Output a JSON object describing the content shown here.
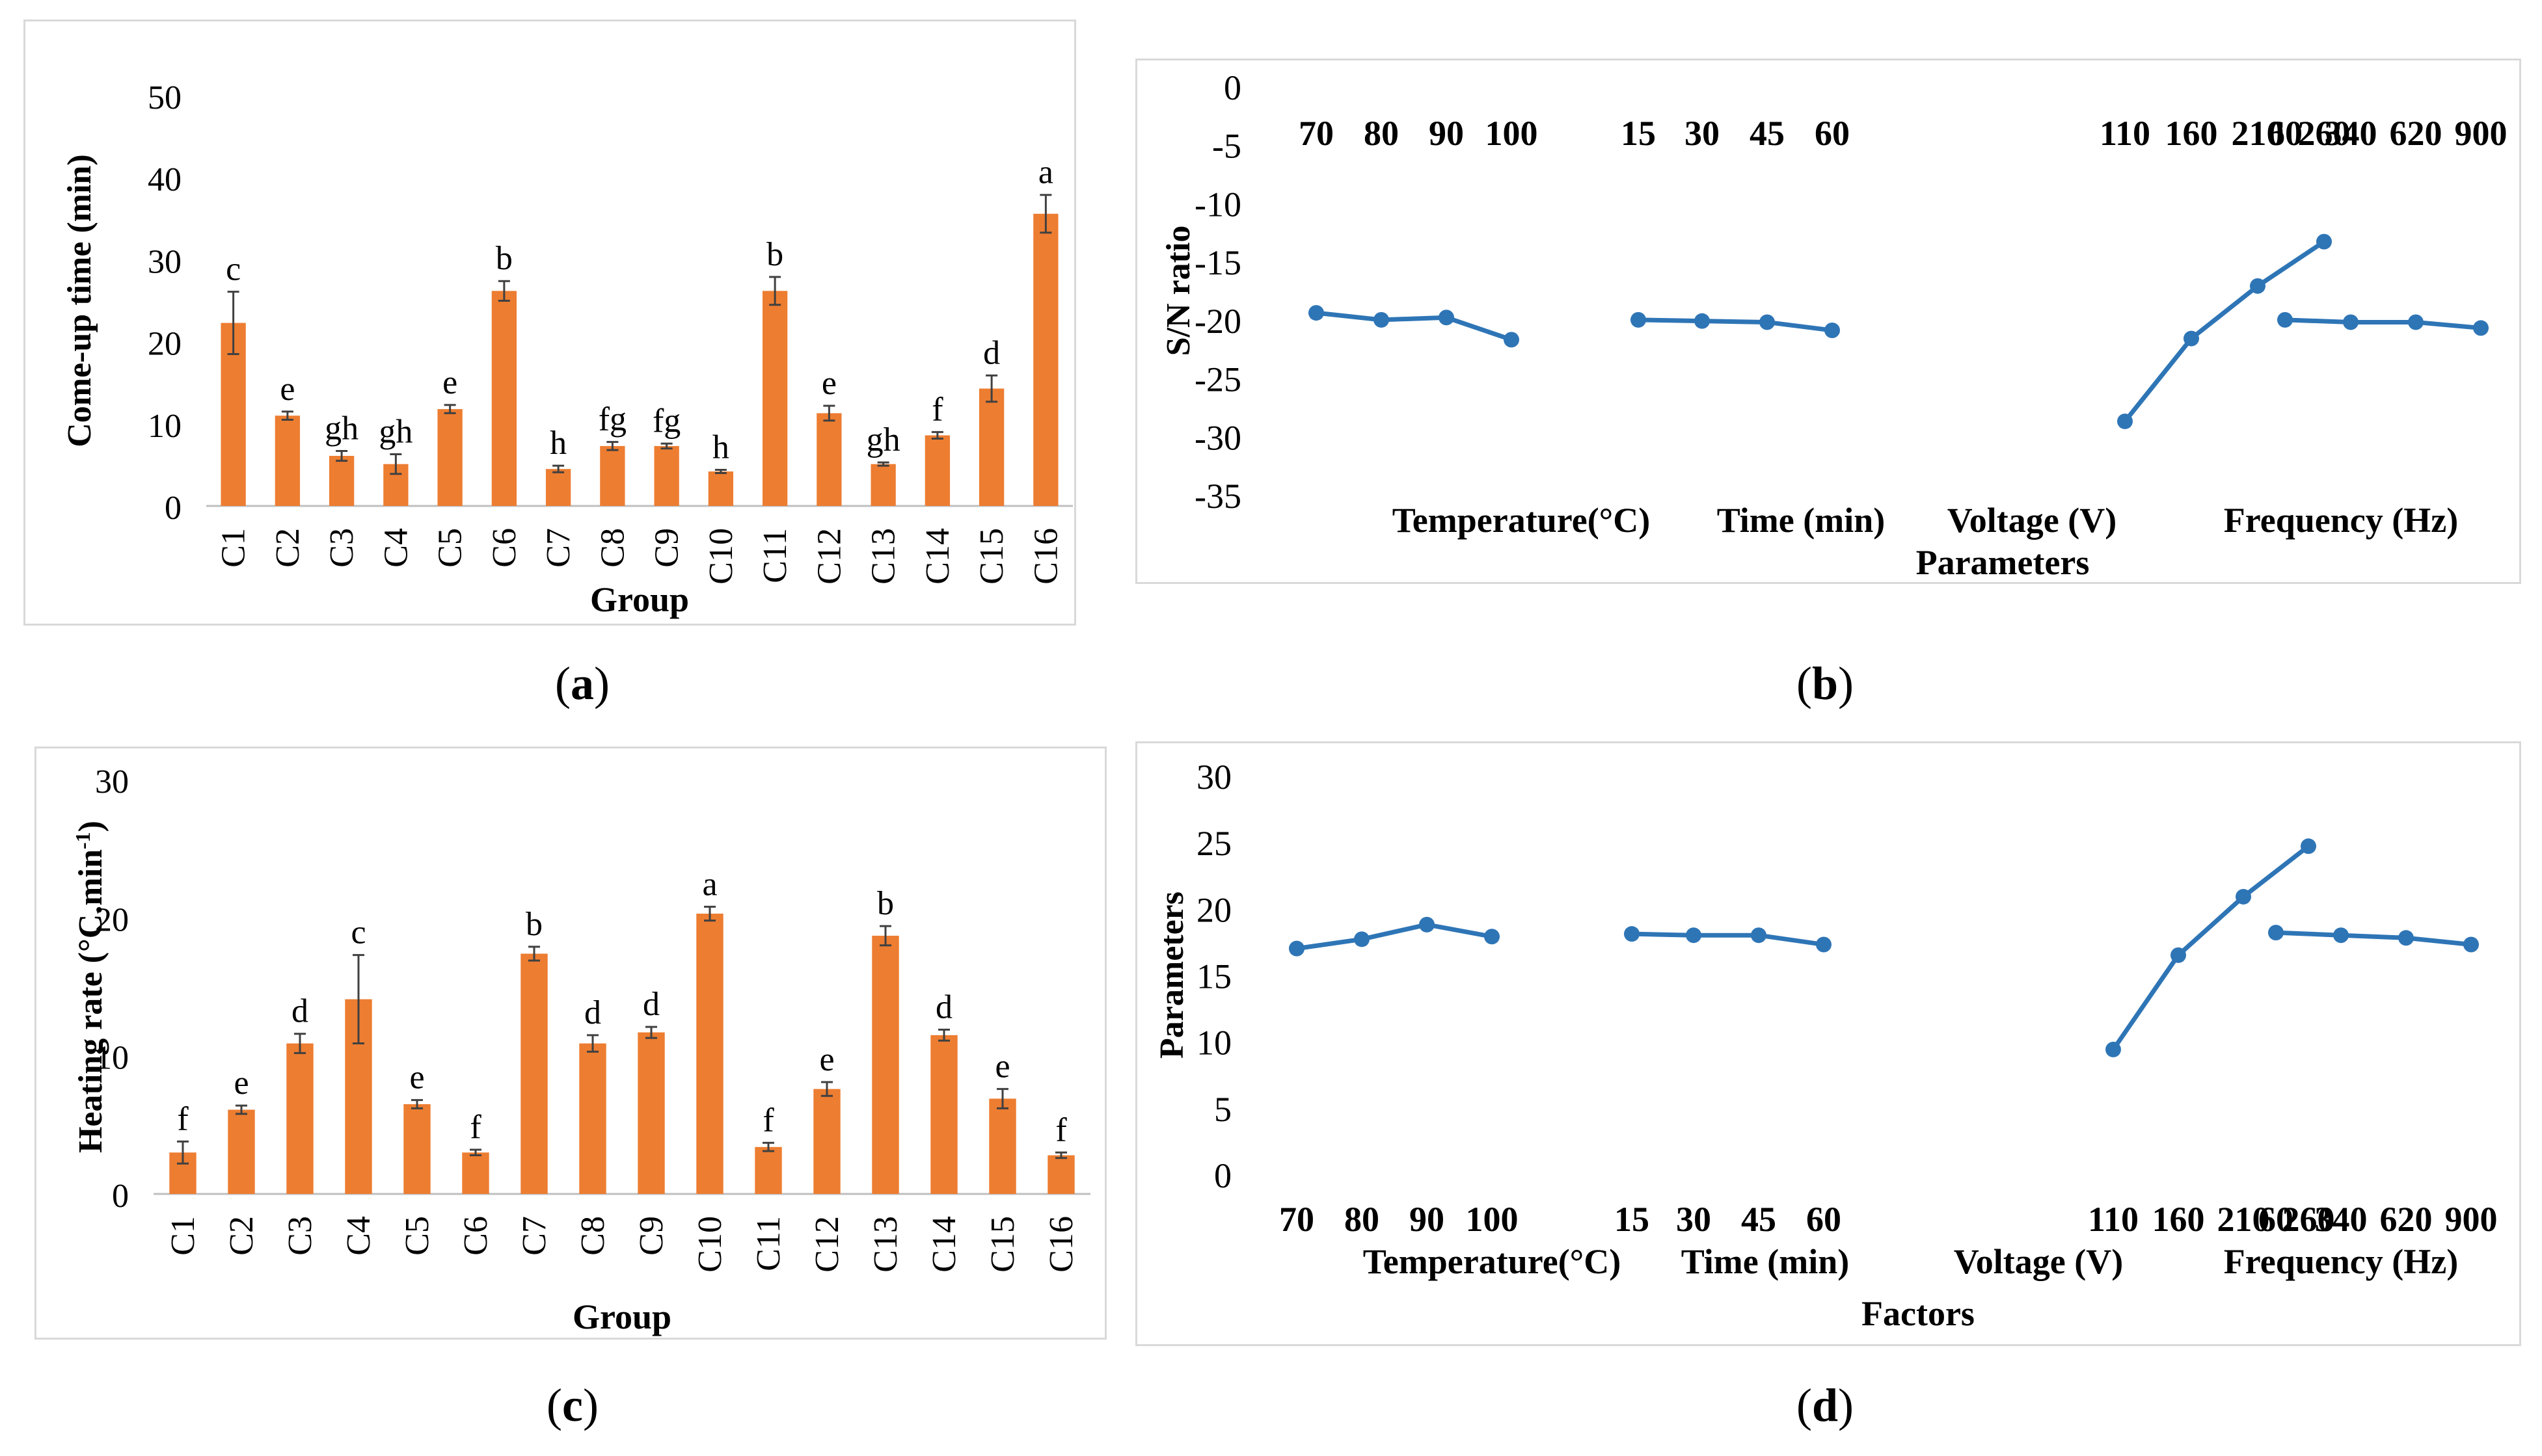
{
  "colors": {
    "bar": "#ED7D31",
    "line": "#2E75B6",
    "axis": "#BFBFBF",
    "text": "#000000"
  },
  "chart_data": [
    {
      "id": "a",
      "type": "bar",
      "caption": "a",
      "ylabel": "Come-up time (min)",
      "xlabel": "Group",
      "ylim": [
        0,
        50
      ],
      "yticks": [
        "0",
        "10",
        "20",
        "30",
        "40",
        "50"
      ],
      "categories": [
        "C1",
        "C2",
        "C3",
        "C4",
        "C5",
        "C6",
        "C7",
        "C8",
        "C9",
        "C10",
        "C11",
        "C12",
        "C13",
        "C14",
        "C15",
        "C16"
      ],
      "values": [
        22.3,
        11.0,
        6.1,
        5.1,
        11.8,
        26.2,
        4.5,
        7.3,
        7.3,
        4.2,
        26.2,
        11.3,
        5.1,
        8.6,
        14.3,
        35.6
      ],
      "errors": [
        3.8,
        0.5,
        0.6,
        1.2,
        0.5,
        1.2,
        0.4,
        0.5,
        0.3,
        0.2,
        1.7,
        0.9,
        0.2,
        0.4,
        1.6,
        2.3
      ],
      "letters": [
        "c",
        "e",
        "gh",
        "gh",
        "e",
        "b",
        "h",
        "fg",
        "fg",
        "h",
        "b",
        "e",
        "gh",
        "f",
        "d",
        "a"
      ]
    },
    {
      "id": "b",
      "type": "line",
      "caption": "b",
      "ylabel": "S/N ratio",
      "xlabel": "Parameters",
      "ylim": [
        -35,
        0
      ],
      "yticks": [
        "0",
        "-5",
        "-10",
        "-15",
        "-20",
        "-25",
        "-30",
        "-35"
      ],
      "series": [
        {
          "name": "Temperature(°C)",
          "levels": [
            "70",
            "80",
            "90",
            "100"
          ],
          "values": [
            -19.4,
            -20.0,
            -19.8,
            -21.7
          ]
        },
        {
          "name": "Time (min)",
          "levels": [
            "15",
            "30",
            "45",
            "60"
          ],
          "values": [
            -20.0,
            -20.1,
            -20.2,
            -20.9
          ]
        },
        {
          "name": "Voltage (V)",
          "levels": [
            "110",
            "160",
            "210",
            "260"
          ],
          "values": [
            -28.7,
            -21.6,
            -17.1,
            -13.3
          ]
        },
        {
          "name": "Frequency (Hz)",
          "levels": [
            "60",
            "340",
            "620",
            "900"
          ],
          "values": [
            -20.0,
            -20.2,
            -20.2,
            -20.7
          ]
        }
      ]
    },
    {
      "id": "c",
      "type": "bar",
      "caption": "c",
      "ylabel": "Heating rate (°C.min",
      "ylabel_sup": "-1",
      "ylabel_end": ")",
      "xlabel": "Group",
      "ylim": [
        0,
        30
      ],
      "yticks": [
        "0",
        "10",
        "20",
        "30"
      ],
      "categories": [
        "C1",
        "C2",
        "C3",
        "C4",
        "C5",
        "C6",
        "C7",
        "C8",
        "C9",
        "C10",
        "C11",
        "C12",
        "C13",
        "C14",
        "C15",
        "C16"
      ],
      "values": [
        3.0,
        6.1,
        10.9,
        14.1,
        6.5,
        3.0,
        17.4,
        10.9,
        11.7,
        20.3,
        3.4,
        7.6,
        18.7,
        11.5,
        6.9,
        2.8
      ],
      "errors": [
        0.8,
        0.3,
        0.7,
        3.2,
        0.3,
        0.2,
        0.5,
        0.6,
        0.4,
        0.5,
        0.3,
        0.5,
        0.7,
        0.4,
        0.7,
        0.2
      ],
      "letters": [
        "f",
        "e",
        "d",
        "c",
        "e",
        "f",
        "b",
        "d",
        "d",
        "a",
        "f",
        "e",
        "b",
        "d",
        "e",
        "f"
      ]
    },
    {
      "id": "d",
      "type": "line",
      "caption": "d",
      "ylabel": "Parameters",
      "xlabel": "Factors",
      "ylim": [
        0,
        30
      ],
      "yticks": [
        "0",
        "5",
        "10",
        "15",
        "20",
        "25",
        "30"
      ],
      "series": [
        {
          "name": "Temperature(°C)",
          "levels": [
            "70",
            "80",
            "90",
            "100"
          ],
          "values": [
            17.0,
            17.7,
            18.8,
            17.9
          ]
        },
        {
          "name": "Time (min)",
          "levels": [
            "15",
            "30",
            "45",
            "60"
          ],
          "values": [
            18.1,
            18.0,
            18.0,
            17.3
          ]
        },
        {
          "name": "Voltage (V)",
          "levels": [
            "110",
            "160",
            "210",
            "260"
          ],
          "values": [
            9.4,
            16.5,
            20.9,
            24.7
          ]
        },
        {
          "name": "Frequency (Hz)",
          "levels": [
            "60",
            "340",
            "620",
            "900"
          ],
          "values": [
            18.2,
            18.0,
            17.8,
            17.3
          ]
        }
      ]
    }
  ]
}
